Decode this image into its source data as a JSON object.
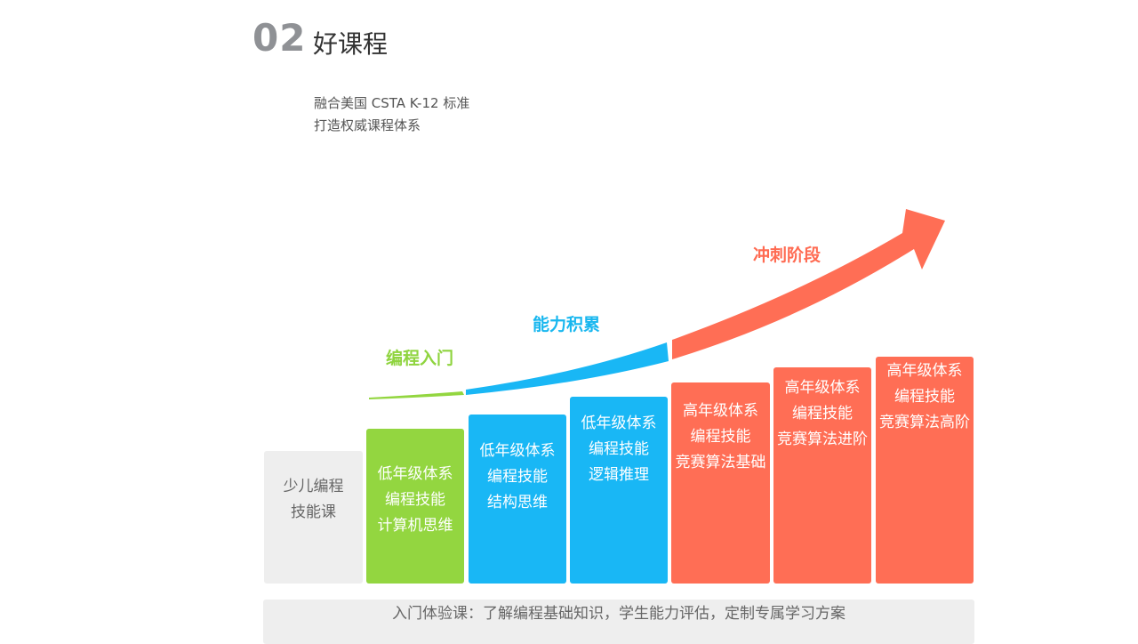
{
  "header": {
    "number": "02",
    "title": "好课程",
    "subtitle_line1": "融合美国 CSTA K-12 标准",
    "subtitle_line2": "打造权威课程体系"
  },
  "stages": {
    "intro": "编程入门",
    "ability": "能力积累",
    "sprint": "冲刺阶段"
  },
  "steps": [
    {
      "lines": [
        "",
        "少儿编程",
        "技能课"
      ],
      "color": "gray"
    },
    {
      "lines": [
        "低年级体系",
        "编程技能",
        "计算机思维"
      ],
      "color": "green"
    },
    {
      "lines": [
        "低年级体系",
        "编程技能",
        "结构思维"
      ],
      "color": "blue"
    },
    {
      "lines": [
        "低年级体系",
        "编程技能",
        "逻辑推理"
      ],
      "color": "blue"
    },
    {
      "lines": [
        "高年级体系",
        "编程技能",
        "竞赛算法基础"
      ],
      "color": "red"
    },
    {
      "lines": [
        "高年级体系",
        "编程技能",
        "竞赛算法进阶"
      ],
      "color": "red"
    },
    {
      "lines": [
        "高年级体系",
        "编程技能",
        "竞赛算法高阶"
      ],
      "color": "red"
    }
  ],
  "colors": {
    "green": "#93d640",
    "blue": "#19b7f5",
    "red": "#ff6e55",
    "gray": "#eeeeee"
  },
  "footer": {
    "text": "入门体验课：了解编程基础知识，学生能力评估，定制专属学习方案"
  }
}
